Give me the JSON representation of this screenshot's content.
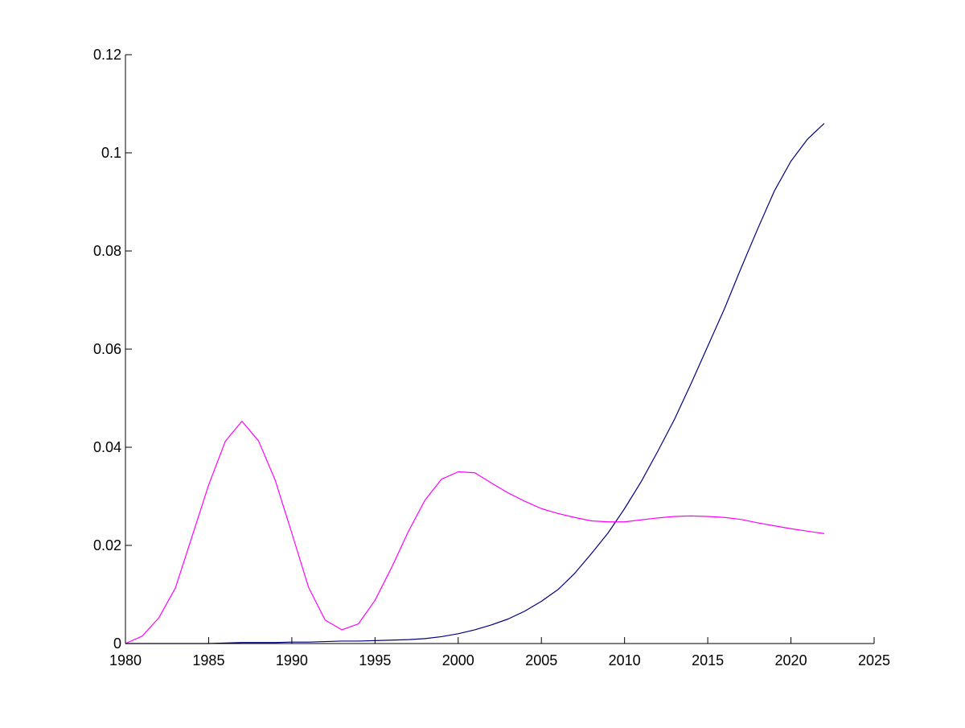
{
  "chart_data": {
    "type": "line",
    "title": "",
    "xlabel": "",
    "ylabel": "",
    "xlim": [
      1980,
      2025
    ],
    "ylim": [
      0,
      0.12
    ],
    "xticks": [
      1980,
      1985,
      1990,
      1995,
      2000,
      2005,
      2010,
      2015,
      2020,
      2025
    ],
    "xtick_labels": [
      "1980",
      "1985",
      "1990",
      "1995",
      "2000",
      "2005",
      "2010",
      "2015",
      "2020",
      "2025"
    ],
    "yticks": [
      0,
      0.02,
      0.04,
      0.06,
      0.08,
      0.1,
      0.12
    ],
    "ytick_labels": [
      "0",
      "0.02",
      "0.04",
      "0.06",
      "0.08",
      "0.1",
      "0.12"
    ],
    "grid": false,
    "legend": "none",
    "x": [
      1980,
      1981,
      1982,
      1983,
      1984,
      1985,
      1986,
      1987,
      1988,
      1989,
      1990,
      1991,
      1992,
      1993,
      1994,
      1995,
      1996,
      1997,
      1998,
      1999,
      2000,
      2001,
      2002,
      2003,
      2004,
      2005,
      2006,
      2007,
      2008,
      2009,
      2010,
      2011,
      2012,
      2013,
      2014,
      2015,
      2016,
      2017,
      2018,
      2019,
      2020,
      2021,
      2022
    ],
    "series": [
      {
        "color": "#000080",
        "values": [
          0,
          0,
          0,
          0,
          0,
          0,
          0.0001,
          0.0002,
          0.0002,
          0.0002,
          0.0003,
          0.0003,
          0.0004,
          0.0005,
          0.0005,
          0.0006,
          0.0007,
          0.0008,
          0.001,
          0.0014,
          0.002,
          0.0028,
          0.0038,
          0.005,
          0.0066,
          0.0086,
          0.011,
          0.0143,
          0.0183,
          0.0225,
          0.0275,
          0.033,
          0.0392,
          0.0457,
          0.053,
          0.0606,
          0.0682,
          0.0765,
          0.0845,
          0.0922,
          0.0983,
          0.1028,
          0.106
        ]
      },
      {
        "color": "#ff00ff",
        "values": [
          0,
          0.0015,
          0.0052,
          0.0113,
          0.0218,
          0.0323,
          0.0412,
          0.0453,
          0.0413,
          0.0333,
          0.0225,
          0.0115,
          0.0048,
          0.0028,
          0.004,
          0.0088,
          0.0155,
          0.0228,
          0.0292,
          0.0335,
          0.035,
          0.0348,
          0.0327,
          0.0307,
          0.029,
          0.0275,
          0.0265,
          0.0257,
          0.025,
          0.0248,
          0.0248,
          0.0252,
          0.0256,
          0.0259,
          0.026,
          0.0259,
          0.0257,
          0.0253,
          0.0246,
          0.024,
          0.0234,
          0.0229,
          0.0224
        ]
      }
    ]
  }
}
